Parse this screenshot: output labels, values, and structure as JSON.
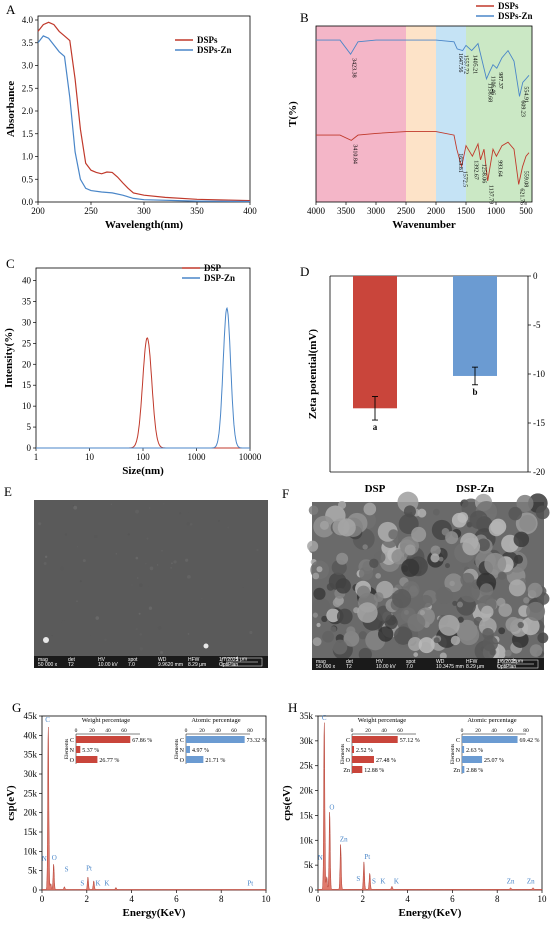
{
  "colors": {
    "red": "#c0392b",
    "blue": "#4a86c8",
    "redbar": "#c9453b",
    "bluebar": "#6b9bd2"
  },
  "panels": {
    "A": {
      "letter": "A",
      "title": "",
      "xlabel": "Wavelength(nm)",
      "ylabel": "Absorbance",
      "xticks": [
        "200",
        "250",
        "300",
        "350",
        "400"
      ],
      "yticks": [
        "0.0",
        "0.5",
        "1.0",
        "1.5",
        "2.0",
        "2.5",
        "3.0",
        "3.5",
        "4.0"
      ],
      "legend": [
        "DSPs",
        "DSPs-Zn"
      ]
    },
    "B": {
      "letter": "B",
      "xlabel": "Wavenumber",
      "ylabel": "T(%)",
      "xticks": [
        "4000",
        "3500",
        "3000",
        "2500",
        "2000",
        "1500",
        "1000",
        "500"
      ],
      "legend": [
        "DSPs",
        "DSPs-Zn"
      ],
      "peaks_top": [
        "3423.38",
        "1647.56",
        "1557.72",
        "1405.21",
        "1158.68",
        "1106.46",
        "987.37",
        "609.23",
        "554.91"
      ],
      "peaks_bottom": [
        "3410.84",
        "1653.81",
        "1572.5",
        "1392.67",
        "1258.06",
        "1137.79",
        "993.64",
        "621.76",
        "559.08"
      ]
    },
    "C": {
      "letter": "C",
      "xlabel": "Size(nm)",
      "ylabel": "Intensity(%)",
      "xticks": [
        "1",
        "10",
        "100",
        "1000",
        "10000"
      ],
      "yticks": [
        "0",
        "5",
        "10",
        "15",
        "20",
        "25",
        "30",
        "35",
        "40"
      ],
      "legend": [
        "DSP",
        "DSP-Zn"
      ]
    },
    "D": {
      "letter": "D",
      "ylabel": "Zeta potential(mV)",
      "categories": [
        "DSP",
        "DSP-Zn"
      ],
      "yticks": [
        "0",
        "-5",
        "-10",
        "-15",
        "-20"
      ],
      "sig": [
        "a",
        "b"
      ]
    },
    "E": {
      "letter": "E",
      "scalebar": "1 μm",
      "info": [
        "mag",
        "det",
        "HV",
        "spot",
        "WD",
        "HFW"
      ],
      "values": [
        "50 000 x",
        "T2",
        "10.00 kV",
        "7.0",
        "9.9620 mm",
        "8.29 μm"
      ],
      "date": "1/7/2025",
      "instrument": "OptiPlan"
    },
    "F": {
      "letter": "F",
      "scalebar": "1 μm",
      "info": [
        "mag",
        "det",
        "HV",
        "spot",
        "WD",
        "HFW"
      ],
      "values": [
        "50 000 x",
        "T2",
        "10.00 kV",
        "7.0",
        "10.3475 mm",
        "8.29 μm"
      ],
      "date": "1/6/2025",
      "instrument": "OptiPlan"
    },
    "G": {
      "letter": "G",
      "xlabel": "Energy(KeV)",
      "ylabel": "csp(eV)",
      "xticks": [
        "0",
        "2",
        "4",
        "6",
        "8",
        "10"
      ],
      "yticks": [
        "0",
        "5k",
        "10k",
        "15k",
        "20k",
        "25k",
        "30k",
        "35k",
        "40k",
        "45k"
      ],
      "peak_labels": [
        "C",
        "N",
        "O",
        "S",
        "Pt",
        "S",
        "K",
        "K",
        "Pt"
      ],
      "inset_weight_title": "Weight percentage",
      "inset_atomic_title": "Atomic percentage",
      "inset_axis": "Elements",
      "weight_ticks": [
        "0",
        "20",
        "40",
        "60"
      ],
      "atomic_ticks": [
        "0",
        "20",
        "40",
        "60",
        "80"
      ],
      "elements": [
        "C",
        "N",
        "O"
      ],
      "weight": [
        "67.86 %",
        "5.37 %",
        "26.77 %"
      ],
      "atomic": [
        "73.32 %",
        "4.97 %",
        "21.71 %"
      ]
    },
    "H": {
      "letter": "H",
      "xlabel": "Energy(KeV)",
      "ylabel": "cps(eV)",
      "xticks": [
        "0",
        "2",
        "4",
        "6",
        "8",
        "10"
      ],
      "yticks": [
        "0",
        "5k",
        "10k",
        "15k",
        "20k",
        "25k",
        "30k",
        "35k"
      ],
      "peak_labels": [
        "C",
        "N",
        "O",
        "Zn",
        "S",
        "Pt",
        "S",
        "K",
        "K",
        "Zn",
        "Zn"
      ],
      "inset_weight_title": "Weight percentage",
      "inset_atomic_title": "Atomic percentage",
      "inset_axis": "Elements",
      "weight_ticks": [
        "0",
        "20",
        "40",
        "60"
      ],
      "atomic_ticks": [
        "0",
        "20",
        "40",
        "60",
        "80"
      ],
      "elements": [
        "C",
        "N",
        "O",
        "Zn"
      ],
      "weight": [
        "57.12 %",
        "2.52 %",
        "27.48 %",
        "12.88 %"
      ],
      "atomic": [
        "69.42 %",
        "2.63 %",
        "25.07 %",
        "2.88 %"
      ]
    }
  },
  "chart_data": [
    {
      "type": "line",
      "panel": "A",
      "xlabel": "Wavelength(nm)",
      "ylabel": "Absorbance",
      "xlim": [
        200,
        400
      ],
      "ylim": [
        0,
        4.0
      ],
      "series": [
        {
          "name": "DSPs",
          "x": [
            200,
            205,
            210,
            215,
            220,
            225,
            230,
            235,
            240,
            245,
            250,
            255,
            260,
            265,
            270,
            275,
            280,
            285,
            290,
            300,
            320,
            350,
            400
          ],
          "y": [
            3.75,
            3.9,
            3.95,
            3.9,
            3.75,
            3.65,
            3.55,
            2.7,
            1.6,
            0.85,
            0.7,
            0.65,
            0.62,
            0.66,
            0.65,
            0.55,
            0.42,
            0.3,
            0.2,
            0.15,
            0.1,
            0.06,
            0.03
          ]
        },
        {
          "name": "DSPs-Zn",
          "x": [
            200,
            205,
            210,
            215,
            220,
            225,
            230,
            235,
            240,
            245,
            250,
            260,
            270,
            280,
            290,
            300,
            350,
            400
          ],
          "y": [
            3.5,
            3.65,
            3.6,
            3.45,
            3.3,
            3.2,
            2.3,
            1.1,
            0.5,
            0.3,
            0.25,
            0.22,
            0.2,
            0.15,
            0.08,
            0.05,
            0.02,
            0.01
          ]
        }
      ]
    },
    {
      "type": "line",
      "panel": "B",
      "xlabel": "Wavenumber",
      "ylabel": "T(%)",
      "xlim": [
        4000,
        400
      ],
      "regions": [
        {
          "from": 4000,
          "to": 2500,
          "color": "#f4b6c8"
        },
        {
          "from": 2500,
          "to": 2000,
          "color": "#fde3c8"
        },
        {
          "from": 2000,
          "to": 1500,
          "color": "#c5e3f5"
        },
        {
          "from": 1500,
          "to": 400,
          "color": "#cbe8c5"
        }
      ],
      "series": [
        {
          "name": "DSPs-Zn",
          "x": [
            4000,
            3600,
            3423,
            3300,
            3000,
            2500,
            2000,
            1700,
            1647,
            1557,
            1500,
            1405,
            1300,
            1158,
            1106,
            1050,
            987,
            900,
            800,
            700,
            609,
            554,
            500,
            450
          ],
          "y": [
            92,
            92,
            84,
            91,
            92,
            92,
            92,
            91,
            87,
            86,
            89,
            86,
            90,
            70,
            74,
            78,
            76,
            82,
            86,
            80,
            60,
            68,
            70,
            72
          ]
        },
        {
          "name": "DSPs",
          "x": [
            4000,
            3600,
            3411,
            3300,
            3000,
            2500,
            2000,
            1700,
            1654,
            1573,
            1500,
            1393,
            1300,
            1258,
            1200,
            1138,
            1050,
            994,
            900,
            800,
            700,
            622,
            559,
            500,
            450
          ],
          "y": [
            38,
            38,
            35,
            38,
            39,
            40,
            40,
            38,
            30,
            20,
            32,
            26,
            33,
            24,
            30,
            12,
            30,
            26,
            32,
            34,
            30,
            10,
            20,
            26,
            28
          ]
        }
      ]
    },
    {
      "type": "line",
      "panel": "C",
      "xlabel": "Size(nm)",
      "ylabel": "Intensity(%)",
      "xscale": "log",
      "xlim": [
        1,
        10000
      ],
      "ylim": [
        0,
        43
      ],
      "series": [
        {
          "name": "DSP",
          "peak_x": 120,
          "peak_y": 26.3,
          "sigma_log": 0.085
        },
        {
          "name": "DSP-Zn",
          "peak_x": 3700,
          "peak_y": 33.4,
          "sigma_log": 0.07
        }
      ]
    },
    {
      "type": "bar",
      "panel": "D",
      "ylabel": "Zeta potential(mV)",
      "categories": [
        "DSP",
        "DSP-Zn"
      ],
      "ylim": [
        -20,
        0
      ],
      "values": [
        -13.5,
        -10.2
      ],
      "errors": [
        1.2,
        0.9
      ]
    },
    {
      "type": "bar",
      "panel": "G",
      "xlabel": "Energy(KeV)",
      "ylabel": "csp(eV)",
      "xlim": [
        0,
        10
      ],
      "ylim": [
        0,
        45000
      ],
      "spectrum_peaks": [
        {
          "x": 0.28,
          "y": 42000
        },
        {
          "x": 0.39,
          "y": 1500
        },
        {
          "x": 0.52,
          "y": 6500
        },
        {
          "x": 1.0,
          "y": 700
        },
        {
          "x": 2.31,
          "y": 2200
        },
        {
          "x": 2.05,
          "y": 3200
        },
        {
          "x": 3.3,
          "y": 500
        }
      ],
      "weight": {
        "C": 67.86,
        "N": 5.37,
        "O": 26.77
      },
      "atomic": {
        "C": 73.32,
        "N": 4.97,
        "O": 21.71
      }
    },
    {
      "type": "bar",
      "panel": "H",
      "xlabel": "Energy(KeV)",
      "ylabel": "cps(eV)",
      "xlim": [
        0,
        10
      ],
      "ylim": [
        0,
        35000
      ],
      "spectrum_peaks": [
        {
          "x": 0.28,
          "y": 33500
        },
        {
          "x": 0.39,
          "y": 2500
        },
        {
          "x": 0.52,
          "y": 15500
        },
        {
          "x": 1.01,
          "y": 9000
        },
        {
          "x": 2.31,
          "y": 3200
        },
        {
          "x": 2.05,
          "y": 5500
        },
        {
          "x": 3.3,
          "y": 600
        },
        {
          "x": 8.6,
          "y": 300
        },
        {
          "x": 9.6,
          "y": 300
        }
      ],
      "weight": {
        "C": 57.12,
        "N": 2.52,
        "O": 27.48,
        "Zn": 12.88
      },
      "atomic": {
        "C": 69.42,
        "N": 2.63,
        "O": 25.07,
        "Zn": 2.88
      }
    }
  ]
}
